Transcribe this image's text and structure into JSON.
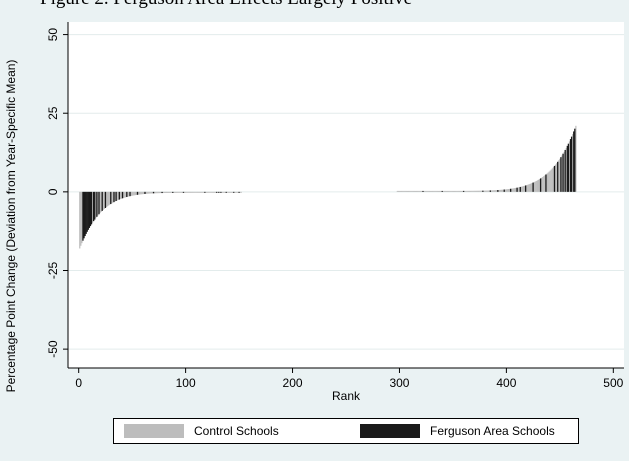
{
  "caption": "Figure 2. Ferguson Area Effects Largely Positive",
  "chart_data": {
    "type": "bar",
    "xlabel": "Rank",
    "ylabel": "Percentage Point Change (Deviation from Year-Specific Mean)",
    "xlim": [
      -10,
      510
    ],
    "ylim": [
      -56,
      54
    ],
    "xticks": [
      0,
      100,
      200,
      300,
      400,
      500
    ],
    "yticks": [
      50,
      25,
      0,
      -25,
      -50
    ],
    "ytick_labels": [
      "50",
      "25",
      "0",
      "-25",
      "-50"
    ],
    "grid": "horizontal",
    "legend_position": "bottom",
    "series": [
      {
        "name": "Control Schools",
        "color": "#bdbdbd"
      },
      {
        "name": "Ferguson Area Schools",
        "color": "#1a1a1a"
      }
    ],
    "profile": {
      "negative_segment": {
        "rank_start": 1,
        "rank_end": 152,
        "min_value": -18.0,
        "value_at_end": -0.3
      },
      "positive_segment": {
        "rank_start": 298,
        "rank_end": 465,
        "value_at_start": 0.3,
        "max_value": 21.0
      }
    },
    "ferguson_ranks": [
      4,
      5,
      6,
      7,
      8,
      9,
      10,
      11,
      12,
      14,
      15,
      17,
      19,
      22,
      25,
      30,
      33,
      35,
      38,
      41,
      45,
      48,
      55,
      62,
      70,
      78,
      88,
      98,
      118,
      129,
      131,
      133,
      138,
      145,
      150,
      322,
      340,
      360,
      378,
      385,
      392,
      398,
      404,
      410,
      413,
      418,
      425,
      432,
      437,
      445,
      448,
      451,
      453,
      455,
      457,
      458,
      460,
      461,
      463,
      464
    ]
  },
  "legend": {
    "control_label": "Control Schools",
    "ferguson_label": "Ferguson Area Schools"
  }
}
